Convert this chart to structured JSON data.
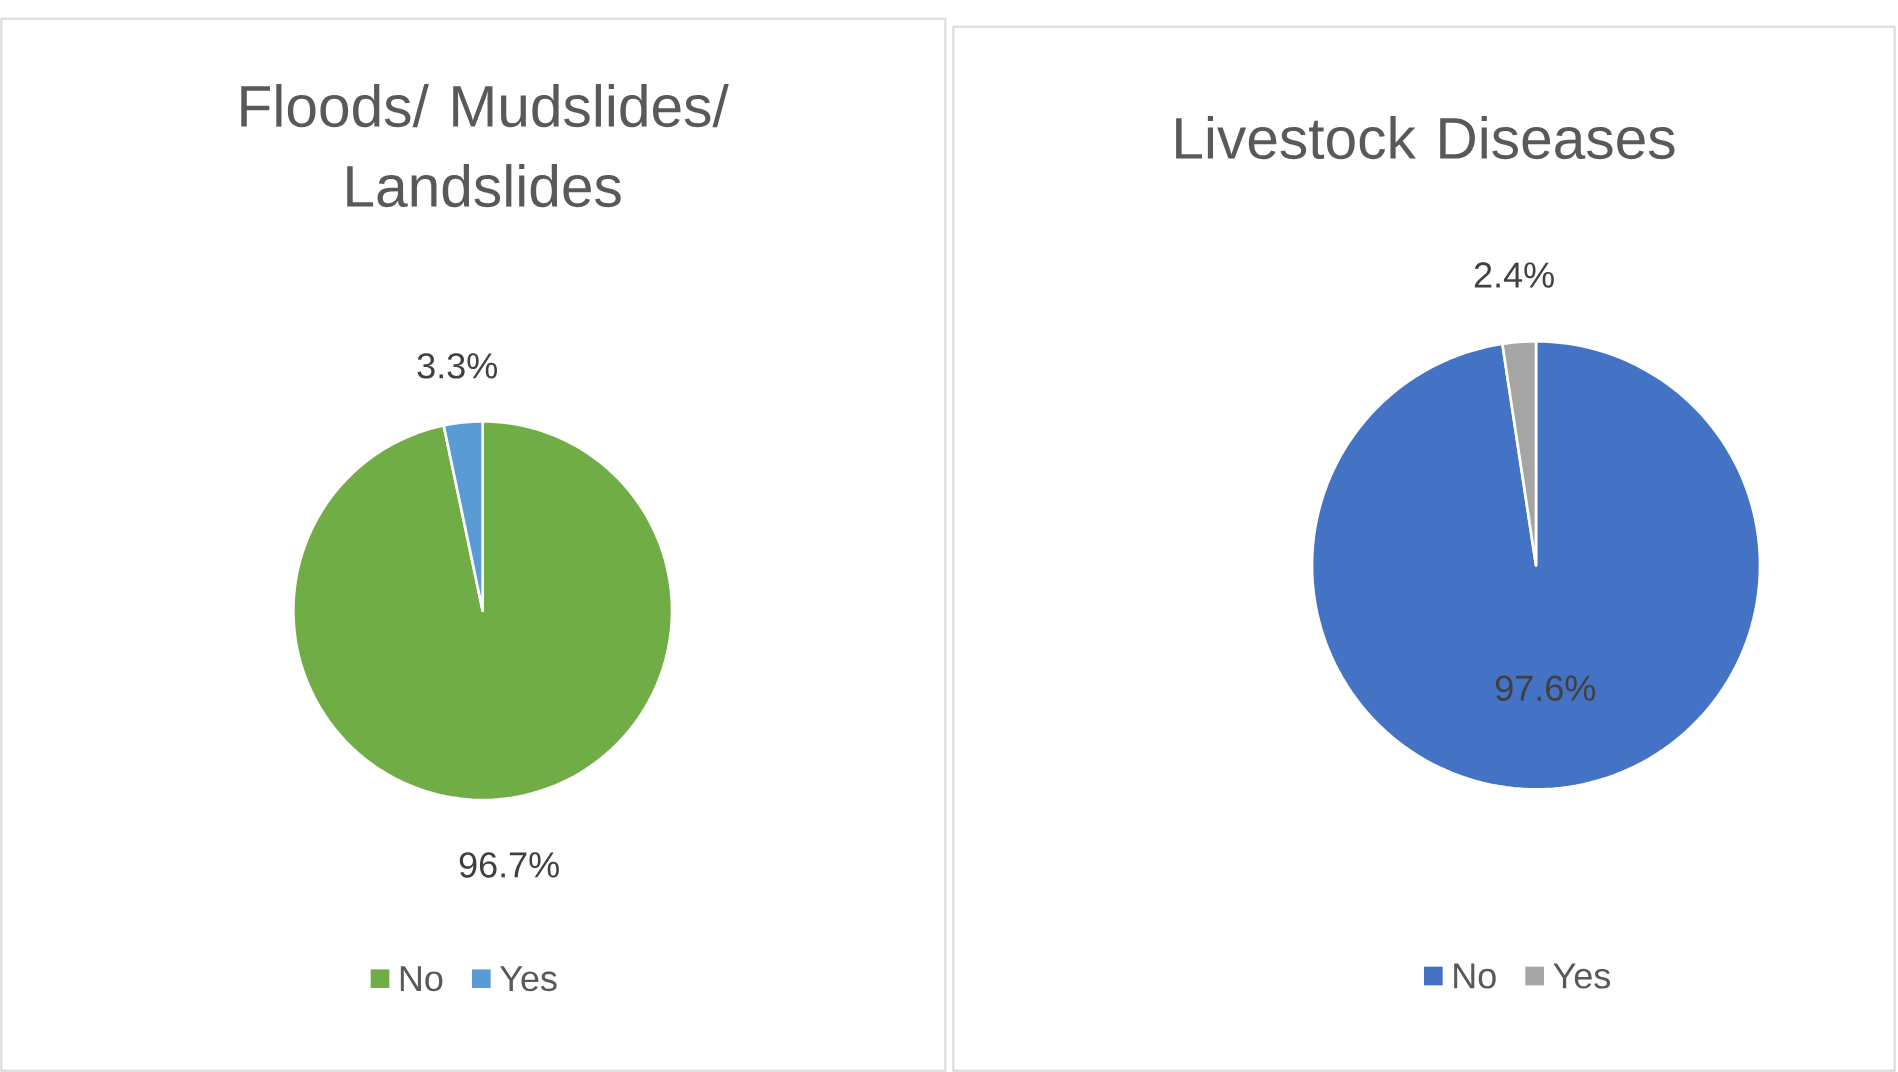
{
  "chart_data": [
    {
      "type": "pie",
      "title": "Floods/ Mudslides/ Landslides",
      "categories": [
        "No",
        "Yes"
      ],
      "values": [
        96.7,
        3.3
      ],
      "colors": [
        "#70ad47",
        "#5b9bd5"
      ],
      "value_labels": [
        "96.7%",
        "3.3%"
      ],
      "legend": "bottom"
    },
    {
      "type": "pie",
      "title": "Livestock Diseases",
      "categories": [
        "No",
        "Yes"
      ],
      "values": [
        97.6,
        2.4
      ],
      "colors": [
        "#4472c4",
        "#a5a5a5"
      ],
      "value_labels": [
        "97.6%",
        "2.4%"
      ],
      "legend": "bottom"
    }
  ]
}
